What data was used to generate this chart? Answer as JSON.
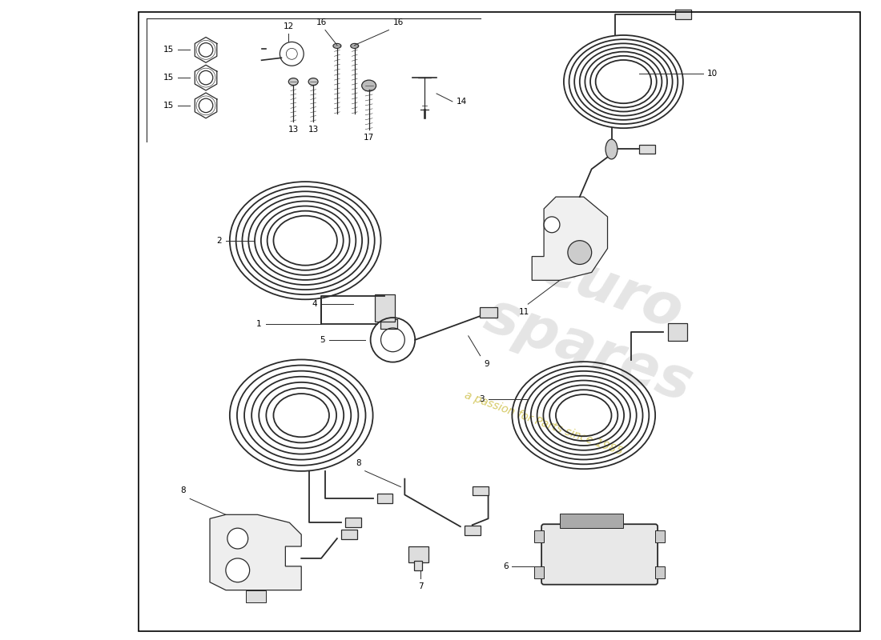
{
  "bg_color": "#ffffff",
  "line_color": "#2a2a2a",
  "watermark_gray": "#cccccc",
  "watermark_yellow": "#c8b832",
  "border": [
    0.155,
    0.01,
    0.825,
    0.975
  ],
  "fig_w": 11.0,
  "fig_h": 8.0,
  "dpi": 100
}
